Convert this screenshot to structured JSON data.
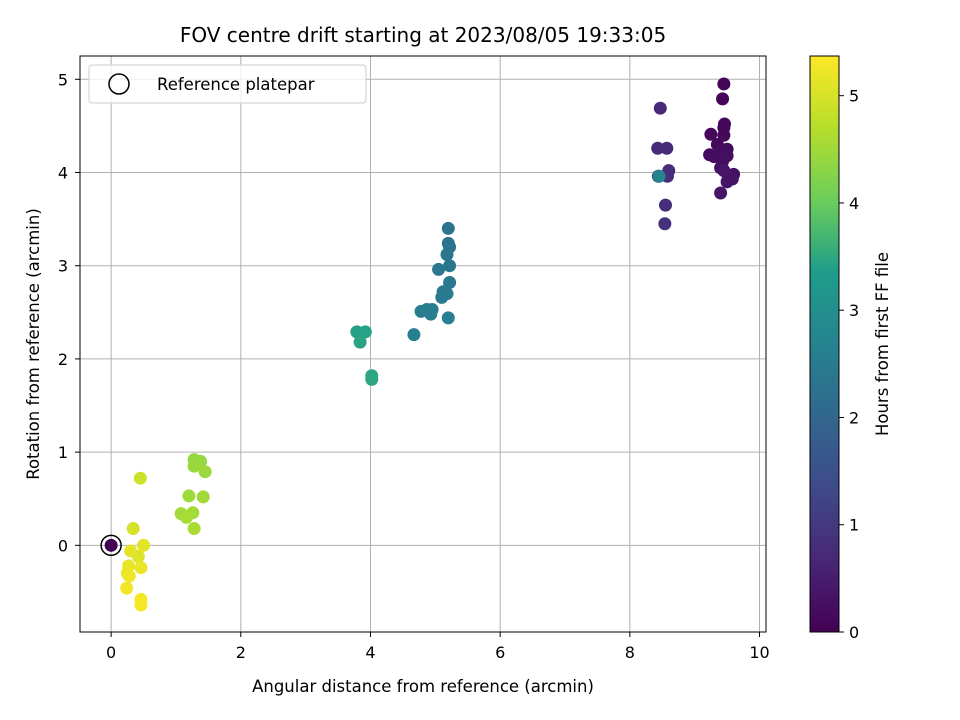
{
  "chart_data": {
    "type": "scatter",
    "title": "FOV centre drift starting at 2023/08/05 19:33:05",
    "xlabel": "Angular distance from reference (arcmin)",
    "ylabel": "Rotation from reference (arcmin)",
    "xlim": [
      -0.48,
      10.1
    ],
    "ylim": [
      -0.93,
      5.25
    ],
    "xticks": [
      0,
      2,
      4,
      6,
      8,
      10
    ],
    "yticks": [
      0,
      1,
      2,
      3,
      4,
      5
    ],
    "grid": true,
    "legend": {
      "placement": "upper-left",
      "entries": [
        "Reference platepar"
      ]
    },
    "reference_point": {
      "x": 0,
      "y": 0,
      "label": "Reference platepar"
    },
    "colorbar": {
      "label": "Hours from first FF file",
      "range": [
        0,
        5.37
      ],
      "ticks": [
        0,
        1,
        2,
        3,
        4,
        5
      ],
      "colormap": "viridis",
      "colors": [
        "#440154",
        "#482777",
        "#3f4a8a",
        "#31678e",
        "#26838f",
        "#1f9d8a",
        "#6cce5a",
        "#b6de2b",
        "#fee825"
      ]
    },
    "points": [
      {
        "x": 9.45,
        "y": 4.95,
        "c": 0.05
      },
      {
        "x": 9.43,
        "y": 4.79,
        "c": 0.06
      },
      {
        "x": 9.46,
        "y": 4.52,
        "c": 0.08
      },
      {
        "x": 9.45,
        "y": 4.48,
        "c": 0.1
      },
      {
        "x": 9.25,
        "y": 4.41,
        "c": 0.12
      },
      {
        "x": 9.45,
        "y": 4.4,
        "c": 0.13
      },
      {
        "x": 9.35,
        "y": 4.3,
        "c": 0.15
      },
      {
        "x": 9.5,
        "y": 4.25,
        "c": 0.17
      },
      {
        "x": 9.4,
        "y": 4.22,
        "c": 0.19
      },
      {
        "x": 9.23,
        "y": 4.19,
        "c": 0.21
      },
      {
        "x": 9.3,
        "y": 4.17,
        "c": 0.22
      },
      {
        "x": 9.5,
        "y": 4.18,
        "c": 0.24
      },
      {
        "x": 9.43,
        "y": 4.12,
        "c": 0.25
      },
      {
        "x": 9.4,
        "y": 4.05,
        "c": 0.27
      },
      {
        "x": 9.6,
        "y": 3.98,
        "c": 0.29
      },
      {
        "x": 9.52,
        "y": 3.95,
        "c": 0.3
      },
      {
        "x": 9.58,
        "y": 3.93,
        "c": 0.32
      },
      {
        "x": 9.5,
        "y": 3.9,
        "c": 0.33
      },
      {
        "x": 9.4,
        "y": 3.78,
        "c": 0.35
      },
      {
        "x": 9.45,
        "y": 4.02,
        "c": 0.36
      },
      {
        "x": 8.47,
        "y": 4.69,
        "c": 0.7
      },
      {
        "x": 8.43,
        "y": 4.26,
        "c": 0.72
      },
      {
        "x": 8.57,
        "y": 4.26,
        "c": 0.74
      },
      {
        "x": 8.6,
        "y": 4.02,
        "c": 0.76
      },
      {
        "x": 8.58,
        "y": 3.96,
        "c": 0.78
      },
      {
        "x": 8.55,
        "y": 3.65,
        "c": 0.8
      },
      {
        "x": 8.54,
        "y": 3.45,
        "c": 0.82
      },
      {
        "x": 8.44,
        "y": 3.96,
        "c": 0.85
      },
      {
        "x": 8.45,
        "y": 3.96,
        "c": 2.7
      },
      {
        "x": 5.2,
        "y": 3.4,
        "c": 2.3
      },
      {
        "x": 5.2,
        "y": 3.24,
        "c": 2.32
      },
      {
        "x": 5.22,
        "y": 3.2,
        "c": 2.34
      },
      {
        "x": 5.18,
        "y": 3.12,
        "c": 2.36
      },
      {
        "x": 5.22,
        "y": 3.0,
        "c": 2.38
      },
      {
        "x": 5.05,
        "y": 2.96,
        "c": 2.4
      },
      {
        "x": 5.22,
        "y": 2.82,
        "c": 2.42
      },
      {
        "x": 5.12,
        "y": 2.72,
        "c": 2.44
      },
      {
        "x": 5.18,
        "y": 2.7,
        "c": 2.46
      },
      {
        "x": 5.1,
        "y": 2.66,
        "c": 2.48
      },
      {
        "x": 4.95,
        "y": 2.53,
        "c": 2.5
      },
      {
        "x": 4.87,
        "y": 2.53,
        "c": 2.52
      },
      {
        "x": 4.78,
        "y": 2.51,
        "c": 2.54
      },
      {
        "x": 4.93,
        "y": 2.48,
        "c": 2.56
      },
      {
        "x": 5.2,
        "y": 2.44,
        "c": 2.58
      },
      {
        "x": 4.67,
        "y": 2.26,
        "c": 2.6
      },
      {
        "x": 3.79,
        "y": 2.29,
        "c": 3.4
      },
      {
        "x": 3.92,
        "y": 2.29,
        "c": 3.42
      },
      {
        "x": 3.84,
        "y": 2.18,
        "c": 3.44
      },
      {
        "x": 4.02,
        "y": 1.82,
        "c": 3.46
      },
      {
        "x": 4.02,
        "y": 1.78,
        "c": 3.48
      },
      {
        "x": 1.28,
        "y": 0.92,
        "c": 4.4
      },
      {
        "x": 1.38,
        "y": 0.9,
        "c": 4.42
      },
      {
        "x": 1.28,
        "y": 0.85,
        "c": 4.44
      },
      {
        "x": 1.45,
        "y": 0.79,
        "c": 4.46
      },
      {
        "x": 1.2,
        "y": 0.53,
        "c": 4.48
      },
      {
        "x": 1.42,
        "y": 0.52,
        "c": 4.5
      },
      {
        "x": 1.08,
        "y": 0.34,
        "c": 4.52
      },
      {
        "x": 1.26,
        "y": 0.35,
        "c": 4.54
      },
      {
        "x": 1.16,
        "y": 0.3,
        "c": 4.56
      },
      {
        "x": 1.28,
        "y": 0.18,
        "c": 4.58
      },
      {
        "x": 0.45,
        "y": 0.72,
        "c": 4.9
      },
      {
        "x": 0.34,
        "y": 0.18,
        "c": 5.0
      },
      {
        "x": 0.42,
        "y": -0.12,
        "c": 5.05
      },
      {
        "x": 0.5,
        "y": 0.0,
        "c": 5.1
      },
      {
        "x": 0.3,
        "y": -0.06,
        "c": 5.12
      },
      {
        "x": 0.27,
        "y": -0.22,
        "c": 5.15
      },
      {
        "x": 0.46,
        "y": -0.24,
        "c": 5.18
      },
      {
        "x": 0.25,
        "y": -0.3,
        "c": 5.2
      },
      {
        "x": 0.28,
        "y": -0.33,
        "c": 5.22
      },
      {
        "x": 0.24,
        "y": -0.46,
        "c": 5.25
      },
      {
        "x": 0.46,
        "y": -0.58,
        "c": 5.28
      },
      {
        "x": 0.46,
        "y": -0.64,
        "c": 5.3
      },
      {
        "x": 0.0,
        "y": 0.0,
        "c": 0.0
      }
    ]
  }
}
